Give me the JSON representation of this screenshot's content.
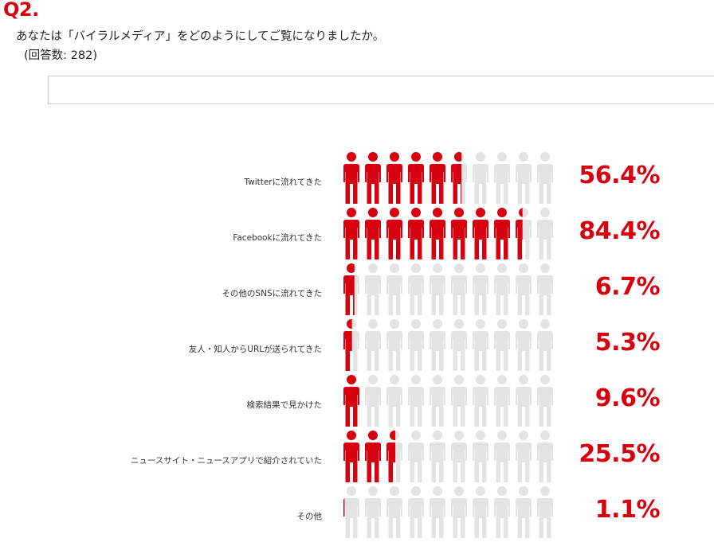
{
  "header": {
    "number": "Q2.",
    "question": "あなたは「バイラルメディア」をどのようにしてご覧になりましたか。",
    "respondents": "(回答数: 282)"
  },
  "colors": {
    "accent": "#d7000f",
    "inactive": "#e3e3e3"
  },
  "chart_data": {
    "type": "bar",
    "style": "pictogram-10-icons",
    "unit": "%",
    "categories": [
      "Twitterに流れてきた",
      "Facebookに流れてきた",
      "その他のSNSに流れてきた",
      "友人・知人からURLが送られてきた",
      "検索結果で見かけた",
      "ニュースサイト・ニュースアプリで紹介されていた",
      "その他"
    ],
    "values": [
      56.4,
      84.4,
      6.7,
      5.3,
      9.6,
      25.5,
      1.1
    ],
    "value_labels": [
      "56.4%",
      "84.4%",
      "6.7%",
      "5.3%",
      "9.6%",
      "25.5%",
      "1.1%"
    ],
    "ylim": [
      0,
      100
    ]
  }
}
